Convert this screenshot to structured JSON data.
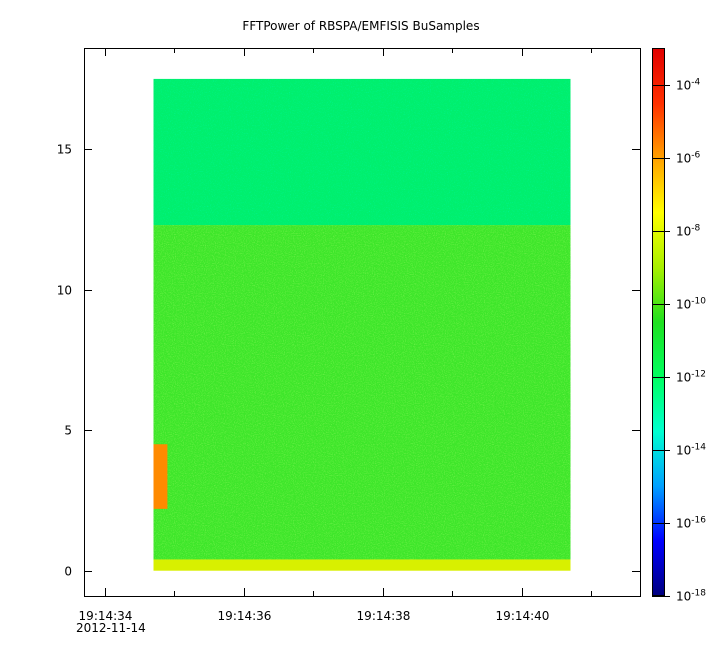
{
  "chart_data": {
    "type": "heatmap",
    "title": "FFTPower of RBSPA/EMFISIS  BuSamples",
    "xlabel": "",
    "ylabel": "",
    "x_tick_labels": [
      "19:14:34",
      "19:14:36",
      "19:14:38",
      "19:14:40"
    ],
    "x_tick_values": [
      34,
      36,
      38,
      40
    ],
    "x_minor_tick_values": [
      35,
      37,
      39,
      41
    ],
    "x_date_label": "2012-11-14",
    "xlim": [
      33.7,
      41.7
    ],
    "ylim": [
      -0.9,
      18.6
    ],
    "y_tick_values": [
      0,
      5,
      10,
      15
    ],
    "y_tick_labels": [
      "0",
      "5",
      "10",
      "15"
    ],
    "data_extent": {
      "x": [
        34.7,
        40.7
      ],
      "y": [
        0,
        17.5
      ]
    },
    "colorbar": {
      "scale": "log",
      "range": [
        1e-18,
        0.001
      ],
      "tick_exponents": [
        -18,
        -16,
        -14,
        -12,
        -10,
        -8,
        -6,
        -4
      ],
      "tick_base": "10",
      "colormap": [
        "#00007f",
        "#0000ff",
        "#00a0ff",
        "#00ffd0",
        "#00ff60",
        "#20e020",
        "#a8f000",
        "#ffff00",
        "#ffa000",
        "#ff3000",
        "#e00000"
      ]
    },
    "regions": [
      {
        "y": [
          12.3,
          17.5
        ],
        "level_log10": -12.3,
        "color": "#00ef6e",
        "description": "upper band"
      },
      {
        "y": [
          0.4,
          12.3
        ],
        "level_log10": -10.2,
        "color": "#3ee62a"
      },
      {
        "y": [
          0,
          0.4
        ],
        "level_log10": -8.6,
        "color": "#d8f000"
      },
      {
        "x": [
          34.7,
          34.9
        ],
        "y": [
          2.2,
          4.5
        ],
        "level_log10": -7.0,
        "color": "#ff8a00"
      }
    ],
    "grid": false,
    "legend": "colorbar-right"
  }
}
